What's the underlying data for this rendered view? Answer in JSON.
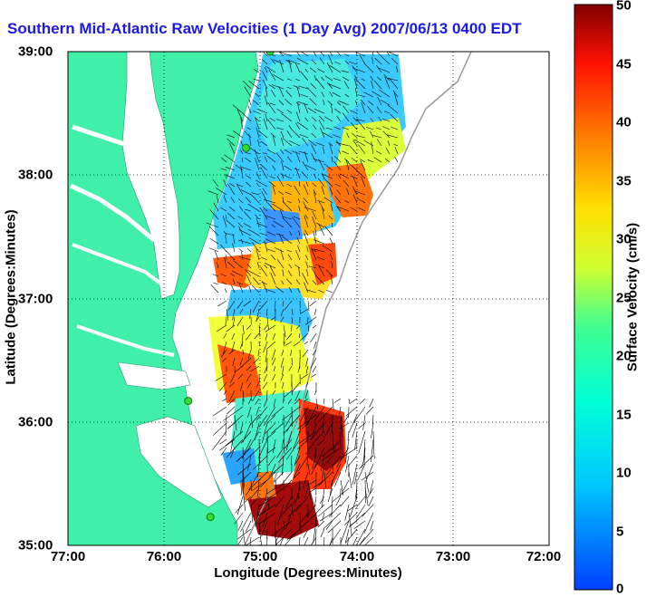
{
  "title": "Southern Mid-Atlantic Raw Velocities (1 Day Avg) 2007/06/13 0400 EDT",
  "map": {
    "xlabel": "Longitude (Degrees:Minutes)",
    "ylabel": "Latitude (Degrees:Minutes)",
    "x_ticks": [
      "77:00",
      "76:00",
      "75:00",
      "74:00",
      "73:00",
      "72:00"
    ],
    "y_ticks": [
      "39:00",
      "38:00",
      "37:00",
      "36:00",
      "35:00"
    ],
    "lon_range": [
      -77,
      -72
    ],
    "lat_range": [
      35,
      39
    ],
    "colors": {
      "land": "#40f0a8",
      "water": "#ffffff",
      "site": "#33dd33",
      "arrows": "#000000"
    }
  },
  "colorbar": {
    "label": "Surface Velocity (cm/s)",
    "ticks": [
      "0",
      "5",
      "10",
      "15",
      "20",
      "25",
      "30",
      "35",
      "40",
      "45",
      "50"
    ],
    "range": [
      0,
      50
    ],
    "colormap": "jet"
  },
  "stations": [
    {
      "lon": -74.9,
      "lat": 39.0
    },
    {
      "lon": -75.15,
      "lat": 38.22
    },
    {
      "lon": -75.75,
      "lat": 36.17
    },
    {
      "lon": -75.52,
      "lat": 35.23
    }
  ]
}
